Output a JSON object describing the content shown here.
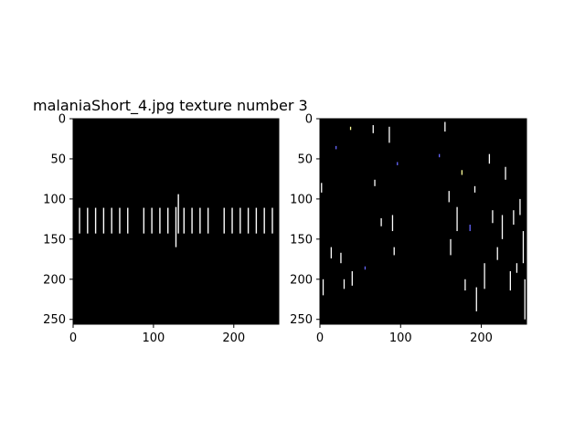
{
  "figure": {
    "title": "malaniaShort_4.jpg texture number 3",
    "background": "#ffffff"
  },
  "chart_data": [
    {
      "type": "image",
      "panel": "left",
      "xlim": [
        0,
        256
      ],
      "ylim": [
        256,
        0
      ],
      "xticks": [
        "0",
        "100",
        "200"
      ],
      "yticks": [
        "0",
        "50",
        "100",
        "150",
        "200",
        "250"
      ],
      "xtick_values": [
        0,
        100,
        200
      ],
      "ytick_values": [
        0,
        50,
        100,
        150,
        200,
        250
      ],
      "image_background": "#000000",
      "stripes": {
        "color": "#ffffff",
        "segments": [
          {
            "x": 8,
            "y1": 111,
            "y2": 143
          },
          {
            "x": 18,
            "y1": 111,
            "y2": 143
          },
          {
            "x": 28,
            "y1": 111,
            "y2": 143
          },
          {
            "x": 38,
            "y1": 111,
            "y2": 143
          },
          {
            "x": 48,
            "y1": 111,
            "y2": 143
          },
          {
            "x": 58,
            "y1": 111,
            "y2": 143
          },
          {
            "x": 68,
            "y1": 111,
            "y2": 143
          },
          {
            "x": 88,
            "y1": 111,
            "y2": 143
          },
          {
            "x": 98,
            "y1": 111,
            "y2": 143
          },
          {
            "x": 108,
            "y1": 111,
            "y2": 143
          },
          {
            "x": 118,
            "y1": 111,
            "y2": 143
          },
          {
            "x": 128,
            "y1": 110,
            "y2": 160
          },
          {
            "x": 131,
            "y1": 94,
            "y2": 143
          },
          {
            "x": 138,
            "y1": 111,
            "y2": 143
          },
          {
            "x": 148,
            "y1": 111,
            "y2": 143
          },
          {
            "x": 158,
            "y1": 111,
            "y2": 143
          },
          {
            "x": 168,
            "y1": 111,
            "y2": 143
          },
          {
            "x": 188,
            "y1": 111,
            "y2": 143
          },
          {
            "x": 198,
            "y1": 111,
            "y2": 143
          },
          {
            "x": 208,
            "y1": 111,
            "y2": 143
          },
          {
            "x": 218,
            "y1": 111,
            "y2": 143
          },
          {
            "x": 228,
            "y1": 111,
            "y2": 143
          },
          {
            "x": 238,
            "y1": 111,
            "y2": 143
          },
          {
            "x": 248,
            "y1": 111,
            "y2": 143
          }
        ]
      }
    },
    {
      "type": "image",
      "panel": "right",
      "xlim": [
        0,
        256
      ],
      "ylim": [
        256,
        0
      ],
      "xticks": [
        "0",
        "100",
        "200"
      ],
      "yticks": [
        "0",
        "50",
        "100",
        "150",
        "200",
        "250"
      ],
      "xtick_values": [
        0,
        100,
        200
      ],
      "ytick_values": [
        0,
        50,
        100,
        150,
        200,
        250
      ],
      "image_background": "#000000",
      "specks": {
        "colors": [
          "#ffffff",
          "#ffffff",
          "#ffffff",
          "#ffff99",
          "#6666ff"
        ],
        "segments": [
          {
            "x": 2,
            "y1": 80,
            "y2": 92,
            "c": 0
          },
          {
            "x": 4,
            "y1": 200,
            "y2": 220,
            "c": 0
          },
          {
            "x": 14,
            "y1": 160,
            "y2": 174,
            "c": 0
          },
          {
            "x": 20,
            "y1": 34,
            "y2": 38,
            "c": 4
          },
          {
            "x": 26,
            "y1": 167,
            "y2": 180,
            "c": 0
          },
          {
            "x": 30,
            "y1": 200,
            "y2": 212,
            "c": 0
          },
          {
            "x": 38,
            "y1": 10,
            "y2": 14,
            "c": 3
          },
          {
            "x": 40,
            "y1": 190,
            "y2": 208,
            "c": 0
          },
          {
            "x": 56,
            "y1": 184,
            "y2": 188,
            "c": 4
          },
          {
            "x": 66,
            "y1": 8,
            "y2": 18,
            "c": 0
          },
          {
            "x": 68,
            "y1": 76,
            "y2": 84,
            "c": 0
          },
          {
            "x": 76,
            "y1": 124,
            "y2": 134,
            "c": 0
          },
          {
            "x": 86,
            "y1": 10,
            "y2": 30,
            "c": 0
          },
          {
            "x": 90,
            "y1": 120,
            "y2": 140,
            "c": 0
          },
          {
            "x": 92,
            "y1": 160,
            "y2": 170,
            "c": 0
          },
          {
            "x": 96,
            "y1": 54,
            "y2": 58,
            "c": 4
          },
          {
            "x": 148,
            "y1": 44,
            "y2": 48,
            "c": 4
          },
          {
            "x": 155,
            "y1": 4,
            "y2": 16,
            "c": 0
          },
          {
            "x": 160,
            "y1": 90,
            "y2": 104,
            "c": 0
          },
          {
            "x": 162,
            "y1": 150,
            "y2": 170,
            "c": 0
          },
          {
            "x": 170,
            "y1": 110,
            "y2": 140,
            "c": 0
          },
          {
            "x": 176,
            "y1": 64,
            "y2": 70,
            "c": 3
          },
          {
            "x": 180,
            "y1": 200,
            "y2": 214,
            "c": 0
          },
          {
            "x": 186,
            "y1": 132,
            "y2": 140,
            "c": 4
          },
          {
            "x": 192,
            "y1": 84,
            "y2": 92,
            "c": 0
          },
          {
            "x": 194,
            "y1": 210,
            "y2": 240,
            "c": 0
          },
          {
            "x": 204,
            "y1": 180,
            "y2": 212,
            "c": 0
          },
          {
            "x": 210,
            "y1": 44,
            "y2": 56,
            "c": 0
          },
          {
            "x": 214,
            "y1": 114,
            "y2": 130,
            "c": 0
          },
          {
            "x": 220,
            "y1": 160,
            "y2": 176,
            "c": 0
          },
          {
            "x": 226,
            "y1": 120,
            "y2": 150,
            "c": 0
          },
          {
            "x": 230,
            "y1": 60,
            "y2": 76,
            "c": 0
          },
          {
            "x": 236,
            "y1": 190,
            "y2": 214,
            "c": 0
          },
          {
            "x": 240,
            "y1": 114,
            "y2": 132,
            "c": 0
          },
          {
            "x": 244,
            "y1": 180,
            "y2": 192,
            "c": 0
          },
          {
            "x": 248,
            "y1": 100,
            "y2": 120,
            "c": 0
          },
          {
            "x": 252,
            "y1": 140,
            "y2": 180,
            "c": 0
          },
          {
            "x": 254,
            "y1": 200,
            "y2": 250,
            "c": 0
          }
        ]
      }
    }
  ]
}
